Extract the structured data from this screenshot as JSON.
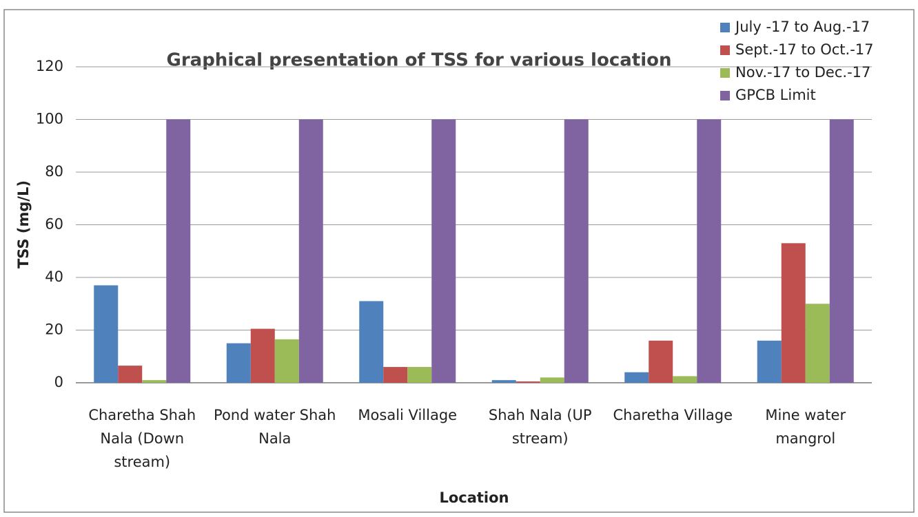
{
  "chart_data": {
    "type": "bar",
    "title": "Graphical presentation of TSS for various location",
    "x_label": "Location",
    "y_label": "TSS (mg/L)",
    "categories": [
      "Charetha Shah Nala (Down stream)",
      "Pond water Shah Nala",
      "Mosali Village",
      "Shah Nala (UP stream)",
      "Charetha Village",
      "Mine water mangrol"
    ],
    "series": [
      {
        "name": "July -17 to Aug.-17",
        "color": "#4f81bd",
        "values": [
          37,
          15,
          31,
          1,
          4,
          16
        ]
      },
      {
        "name": "Sept.-17 to Oct.-17",
        "color": "#c0504d",
        "values": [
          6.5,
          20.5,
          6,
          0.5,
          16,
          53
        ]
      },
      {
        "name": "Nov.-17 to Dec.-17",
        "color": "#9bbb59",
        "values": [
          1,
          16.5,
          6,
          2,
          2.5,
          30
        ]
      },
      {
        "name": "GPCB Limit",
        "color": "#8064a2",
        "values": [
          100,
          100,
          100,
          100,
          100,
          100
        ]
      }
    ],
    "ylim": [
      0,
      120
    ],
    "yticks": [
      0,
      20,
      40,
      60,
      80,
      100,
      120
    ],
    "grid": true,
    "legend": "top-right"
  }
}
